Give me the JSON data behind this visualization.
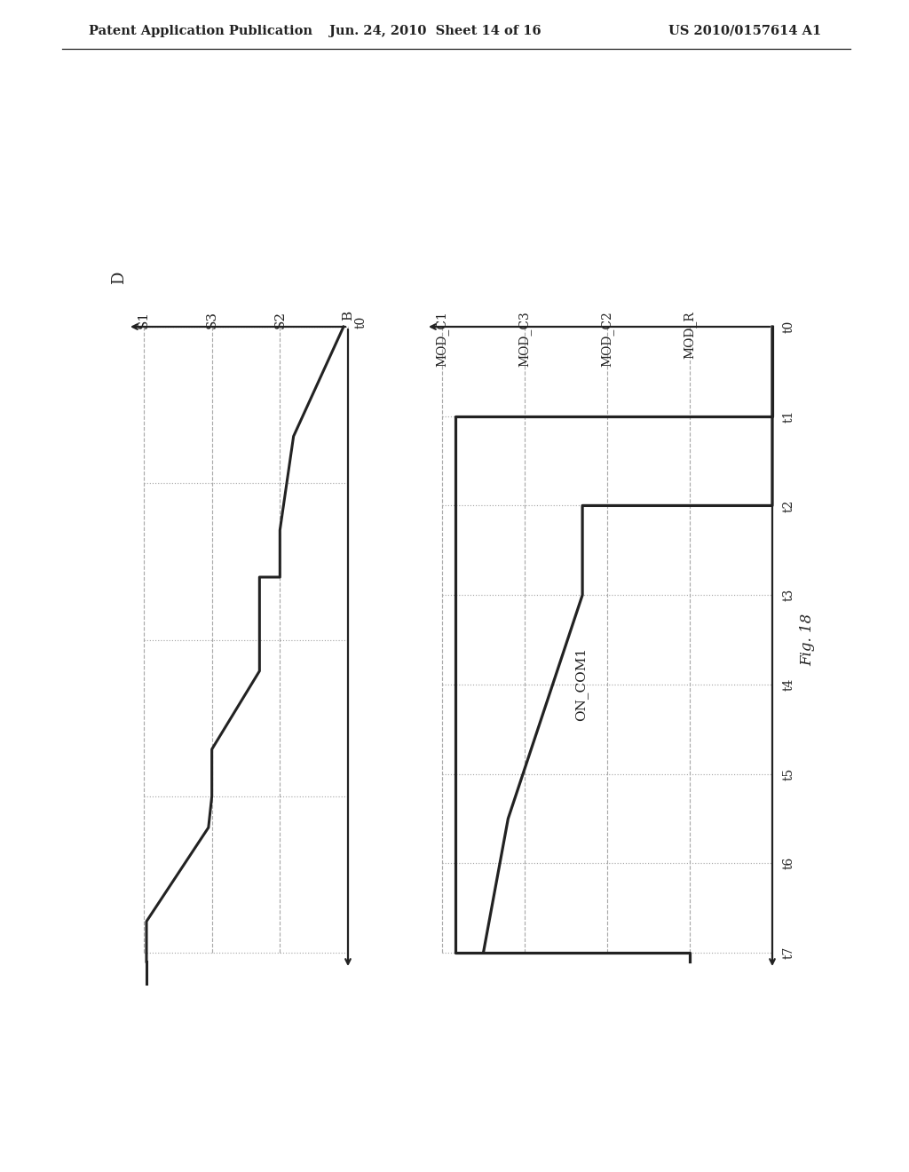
{
  "header_left": "Patent Application Publication",
  "header_center": "Jun. 24, 2010  Sheet 14 of 16",
  "header_right": "US 2010/0157614 A1",
  "fig_label": "Fig. 18",
  "bg_color": "#ffffff",
  "line_color": "#222222",
  "grid_color": "#aaaaaa",
  "time_labels": [
    "t0",
    "t1",
    "t2",
    "t3",
    "t4",
    "t5",
    "t6",
    "t7"
  ],
  "left_y_labels": [
    "S1",
    "S3",
    "S2",
    "B"
  ],
  "left_y_main": "D",
  "right_y_labels_bottom_to_top": [
    "MOD_C1",
    "MOD_C3",
    "MOD_C2",
    "MOD_R"
  ],
  "on_com1_label": "ON_COM1",
  "note": "The entire diagram is rotated 90deg CCW relative to normal orientation. Time axis is vertical (t0 at bottom, t7 near top). The diagram is drawn in rotated coordinate space."
}
